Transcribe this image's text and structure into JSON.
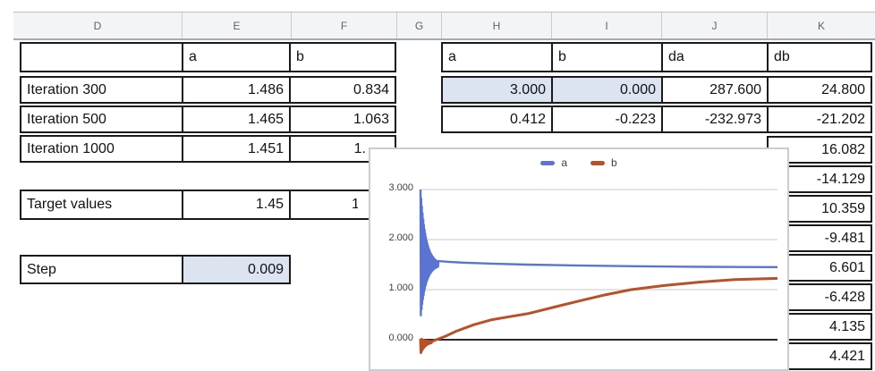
{
  "sheet": {
    "column_headers": [
      "D",
      "E",
      "F",
      "G",
      "H",
      "I",
      "J",
      "K"
    ],
    "highlight_color": "#dce4f2",
    "left_table": {
      "col_headers": [
        "a",
        "b"
      ],
      "rows": [
        {
          "label": "Iteration 300",
          "a": "1.486",
          "b": "0.834"
        },
        {
          "label": "Iteration 500",
          "a": "1.465",
          "b": "1.063"
        },
        {
          "label": "Iteration 1000",
          "a": "1.451",
          "b": "1."
        }
      ]
    },
    "target_row": {
      "label": "Target values",
      "a": "1.45",
      "b_fragment": "1"
    },
    "step_row": {
      "label": "Step",
      "value": "0.009"
    }
  },
  "right_table": {
    "col_headers": [
      "a",
      "b",
      "da",
      "db"
    ],
    "rows": [
      [
        "3.000",
        "0.000",
        "287.600",
        "24.800"
      ],
      [
        "0.412",
        "-0.223",
        "-232.973",
        "-21.202"
      ]
    ],
    "db_values": [
      "16.082",
      "-14.129",
      "10.359",
      "-9.481",
      "6.601",
      "-6.428",
      "4.135",
      "4.421"
    ]
  },
  "chart_data": {
    "type": "line",
    "legend_position": "top",
    "y_tick_labels": [
      "3.000",
      "2.000",
      "1.000",
      "0.000"
    ],
    "y_ticks": [
      3,
      2,
      1,
      0
    ],
    "ylim": [
      -0.45,
      3.35
    ],
    "series": [
      {
        "name": "a",
        "color": "#5b74d4",
        "start_value": 3.0,
        "end_value": 1.45,
        "oscillation": {
          "t_end": 0.05,
          "center": 1.5,
          "hi_amp": 1.5,
          "lo_amp": 1.08,
          "cycles": 26,
          "decay": 3.3
        },
        "tail": [
          [
            0.05,
            1.57
          ],
          [
            0.08,
            1.555
          ],
          [
            0.12,
            1.54
          ],
          [
            0.2,
            1.52
          ],
          [
            0.3,
            1.5
          ],
          [
            0.4,
            1.487
          ],
          [
            0.5,
            1.476
          ],
          [
            0.6,
            1.467
          ],
          [
            0.7,
            1.46
          ],
          [
            0.8,
            1.455
          ],
          [
            0.9,
            1.452
          ],
          [
            1,
            1.45
          ]
        ]
      },
      {
        "name": "b",
        "color": "#bb4f28",
        "start_value": 0.0,
        "end_value": 1.22,
        "oscillation": {
          "t_end": 0.032,
          "center": -0.04,
          "hi_amp": 0.06,
          "lo_amp": 0.24,
          "cycles": 12,
          "decay": 2.5
        },
        "tail": [
          [
            0.04,
            -0.01
          ],
          [
            0.07,
            0.07
          ],
          [
            0.1,
            0.17
          ],
          [
            0.15,
            0.3
          ],
          [
            0.2,
            0.4
          ],
          [
            0.25,
            0.46
          ],
          [
            0.3,
            0.52
          ],
          [
            0.38,
            0.66
          ],
          [
            0.46,
            0.8
          ],
          [
            0.52,
            0.9
          ],
          [
            0.59,
            1.0
          ],
          [
            0.68,
            1.08
          ],
          [
            0.78,
            1.15
          ],
          [
            0.88,
            1.2
          ],
          [
            1,
            1.225
          ]
        ]
      }
    ]
  }
}
